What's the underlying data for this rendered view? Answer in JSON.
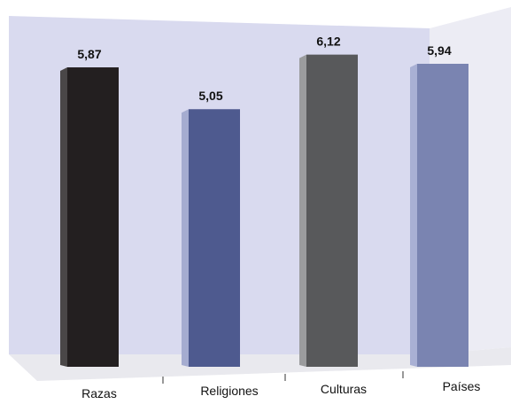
{
  "chart_data": {
    "type": "bar",
    "title": "",
    "xlabel": "",
    "ylabel": "",
    "ylim": [
      0,
      6.6
    ],
    "grid": false,
    "legend": "none",
    "categories": [
      "Razas",
      "Religiones",
      "Culturas",
      "Países"
    ],
    "values": [
      5.87,
      5.05,
      6.12,
      5.94
    ],
    "value_labels": [
      "5,87",
      "5,05",
      "6,12",
      "5,94"
    ],
    "colors": {
      "front": [
        "#231f20",
        "#4e5a8f",
        "#58595b",
        "#7a84b1"
      ],
      "side": [
        "#4a4748",
        "#a5acd0",
        "#9b9c9e",
        "#a9b0d4"
      ],
      "background_wall": "#d9daef",
      "side_wall": "#ececf4",
      "floor": "#e9e9ee"
    }
  }
}
